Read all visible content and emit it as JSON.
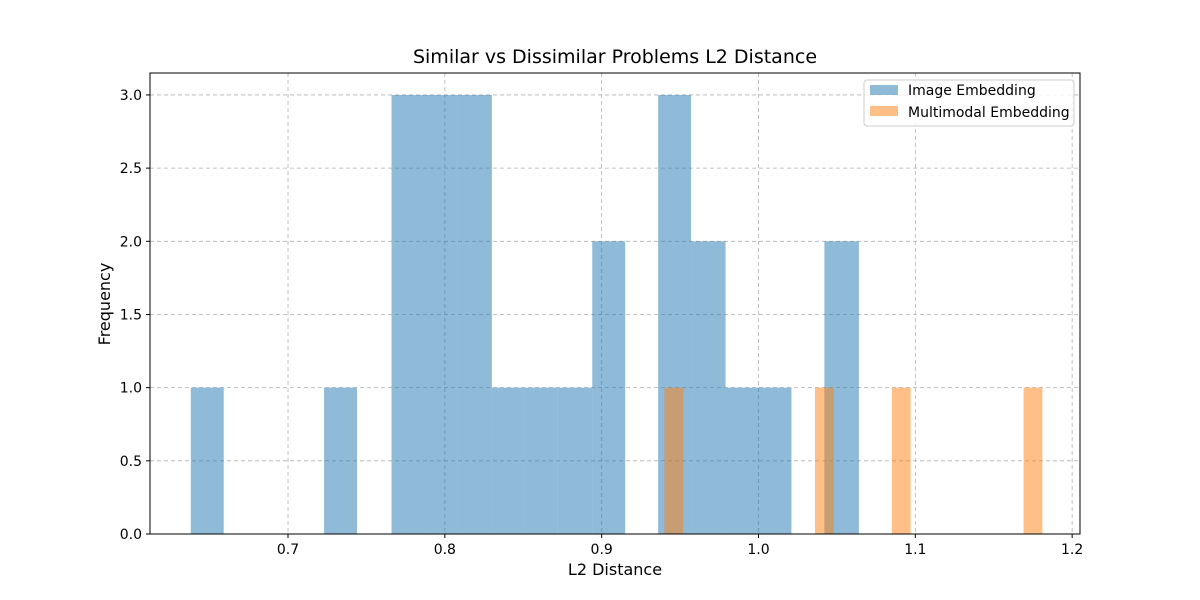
{
  "chart_data": {
    "type": "bar",
    "title": "Similar vs Dissimilar Problems L2 Distance",
    "xlabel": "L2 Distance",
    "ylabel": "Frequency",
    "xlim": [
      0.612,
      1.205
    ],
    "ylim": [
      0,
      3.15
    ],
    "x_ticks": [
      "0.7",
      "0.8",
      "0.9",
      "1.0",
      "1.1",
      "1.2"
    ],
    "y_ticks": [
      "0.0",
      "0.5",
      "1.0",
      "1.5",
      "2.0",
      "2.5",
      "3.0"
    ],
    "grid": true,
    "legend_position": "top-right",
    "series": [
      {
        "name": "Image Embedding",
        "color": "#1f77b4",
        "bars": [
          {
            "x0": 0.638,
            "x1": 0.659,
            "value": 1
          },
          {
            "x0": 0.723,
            "x1": 0.744,
            "value": 1
          },
          {
            "x0": 0.766,
            "x1": 0.787,
            "value": 3
          },
          {
            "x0": 0.787,
            "x1": 0.808,
            "value": 3
          },
          {
            "x0": 0.808,
            "x1": 0.83,
            "value": 3
          },
          {
            "x0": 0.83,
            "x1": 0.851,
            "value": 1
          },
          {
            "x0": 0.851,
            "x1": 0.872,
            "value": 1
          },
          {
            "x0": 0.872,
            "x1": 0.894,
            "value": 1
          },
          {
            "x0": 0.894,
            "x1": 0.915,
            "value": 2
          },
          {
            "x0": 0.936,
            "x1": 0.957,
            "value": 3
          },
          {
            "x0": 0.957,
            "x1": 0.979,
            "value": 2
          },
          {
            "x0": 0.979,
            "x1": 1.0,
            "value": 1
          },
          {
            "x0": 1.0,
            "x1": 1.021,
            "value": 1
          },
          {
            "x0": 1.042,
            "x1": 1.064,
            "value": 2
          }
        ]
      },
      {
        "name": "Multimodal Embedding",
        "color": "#ff7f0e",
        "bars": [
          {
            "x0": 0.94,
            "x1": 0.952,
            "value": 1
          },
          {
            "x0": 1.036,
            "x1": 1.048,
            "value": 1
          },
          {
            "x0": 1.085,
            "x1": 1.097,
            "value": 1
          },
          {
            "x0": 1.169,
            "x1": 1.181,
            "value": 1
          }
        ]
      }
    ]
  }
}
